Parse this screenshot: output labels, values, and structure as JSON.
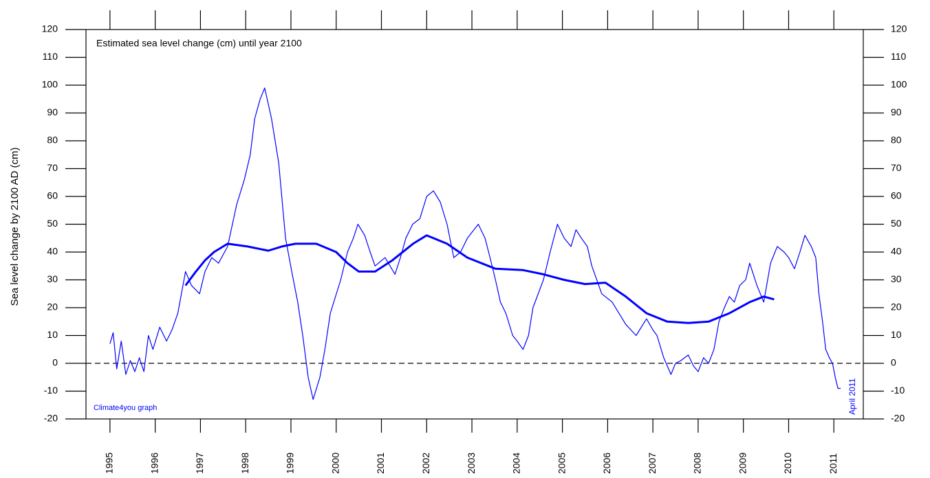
{
  "chart_data": {
    "type": "line",
    "annotation": "Estimated sea level change (cm) until year 2100",
    "ylabel": "Sea level change by 2100 AD (cm)",
    "credit": "Climate4you graph",
    "date_note": "April 2011",
    "xlim": [
      1994.47,
      2011.65
    ],
    "xticks": [
      1995,
      1996,
      1997,
      1998,
      1999,
      2000,
      2001,
      2002,
      2003,
      2004,
      2005,
      2006,
      2007,
      2008,
      2009,
      2010,
      2011
    ],
    "ylim": [
      -20,
      120
    ],
    "yticks": [
      -20,
      -10,
      0,
      10,
      20,
      30,
      40,
      50,
      60,
      70,
      80,
      90,
      100,
      110,
      120
    ],
    "reference_line": {
      "value": 0,
      "style": "dashed",
      "color": "#000000"
    },
    "series": [
      {
        "color": "#0000ff",
        "width": 1.2,
        "x": [
          1995.0,
          1995.07,
          1995.15,
          1995.25,
          1995.35,
          1995.45,
          1995.55,
          1995.65,
          1995.75,
          1995.85,
          1995.95,
          1996.1,
          1996.25,
          1996.37,
          1996.5,
          1996.67,
          1996.8,
          1996.98,
          1997.1,
          1997.25,
          1997.4,
          1997.6,
          1997.8,
          1997.97,
          1998.1,
          1998.2,
          1998.32,
          1998.42,
          1998.57,
          1998.73,
          1998.88,
          1999.03,
          1999.15,
          1999.26,
          1999.38,
          1999.49,
          1999.64,
          1999.75,
          1999.87,
          2000.1,
          2000.25,
          2000.38,
          2000.48,
          2000.63,
          2000.75,
          2000.86,
          2001.08,
          2001.3,
          2001.42,
          2001.54,
          2001.69,
          2001.85,
          2002.0,
          2002.15,
          2002.3,
          2002.45,
          2002.6,
          2002.75,
          2002.9,
          2003.14,
          2003.29,
          2003.4,
          2003.52,
          2003.63,
          2003.75,
          2003.9,
          2004.0,
          2004.13,
          2004.25,
          2004.35,
          2004.58,
          2004.73,
          2004.89,
          2005.04,
          2005.19,
          2005.3,
          2005.42,
          2005.55,
          2005.65,
          2005.87,
          2006.1,
          2006.25,
          2006.4,
          2006.63,
          2006.86,
          2007.0,
          2007.09,
          2007.24,
          2007.4,
          2007.5,
          2007.62,
          2007.78,
          2007.9,
          2008.0,
          2008.12,
          2008.23,
          2008.35,
          2008.46,
          2008.58,
          2008.69,
          2008.8,
          2008.92,
          2009.05,
          2009.14,
          2009.3,
          2009.45,
          2009.6,
          2009.75,
          2009.9,
          2010.0,
          2010.13,
          2010.25,
          2010.36,
          2010.5,
          2010.6,
          2010.67,
          2010.75,
          2010.82,
          2010.9,
          2010.97,
          2011.03,
          2011.09,
          2011.15
        ],
        "values": [
          7,
          11,
          -2,
          8,
          -4,
          1,
          -3,
          2,
          -3,
          10,
          5,
          13,
          8,
          12,
          18,
          33,
          28,
          25,
          33,
          38,
          36,
          42,
          57,
          66,
          75,
          88,
          95,
          99,
          88,
          72,
          45,
          32,
          22,
          10,
          -5,
          -13,
          -5,
          5,
          18,
          30,
          40,
          45,
          50,
          46,
          40,
          35,
          38,
          32,
          38,
          45,
          50,
          52,
          60,
          62,
          58,
          50,
          38,
          40,
          45,
          50,
          45,
          38,
          30,
          22,
          18,
          10,
          8,
          5,
          10,
          20,
          30,
          40,
          50,
          45,
          42,
          48,
          45,
          42,
          35,
          25,
          22,
          18,
          14,
          10,
          16,
          12,
          10,
          2,
          -4,
          0,
          1,
          3,
          -1,
          -3,
          2,
          0,
          5,
          15,
          20,
          24,
          22,
          28,
          30,
          36,
          28,
          22,
          36,
          42,
          40,
          38,
          34,
          40,
          46,
          42,
          38,
          25,
          15,
          5,
          2,
          0,
          -5,
          -9,
          -9
        ]
      },
      {
        "color": "#0000ff",
        "width": 3,
        "x": [
          1996.67,
          1996.9,
          1997.1,
          1997.3,
          1997.6,
          1998.04,
          1998.5,
          1998.8,
          1999.1,
          1999.56,
          2000.0,
          2000.25,
          2000.5,
          2000.86,
          2001.24,
          2001.7,
          2002.0,
          2002.45,
          2002.9,
          2003.52,
          2004.13,
          2004.58,
          2005.04,
          2005.5,
          2005.95,
          2006.4,
          2006.86,
          2007.32,
          2007.78,
          2008.23,
          2008.69,
          2009.14,
          2009.45,
          2009.68
        ],
        "values": [
          28,
          33,
          37,
          40,
          43,
          42,
          40.5,
          42,
          43,
          43,
          40,
          36,
          33,
          33,
          37,
          43,
          46,
          43,
          38,
          34,
          33.5,
          32,
          30,
          28.5,
          29,
          24,
          18,
          15,
          14.5,
          15,
          18,
          22,
          24,
          23
        ]
      }
    ]
  }
}
